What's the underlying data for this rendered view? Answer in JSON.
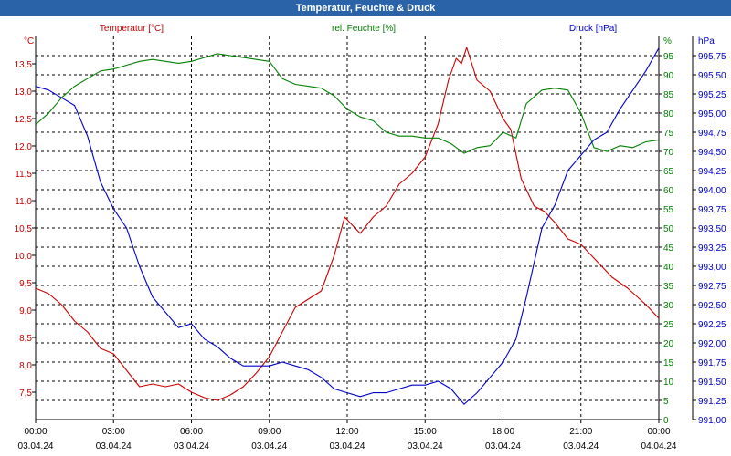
{
  "window": {
    "title": "Temperatur, Feuchte & Druck"
  },
  "colors": {
    "temperature": "#cc0000",
    "humidity": "#008000",
    "pressure": "#0000cc",
    "title_bar": "#2a63a8",
    "grid": "#000000",
    "axis_text": "#000000"
  },
  "chart_data": {
    "type": "line",
    "title": "Temperatur, Feuchte & Druck",
    "x": {
      "unit": "hour",
      "range": [
        0,
        24
      ],
      "ticks": [
        {
          "value": 0,
          "time": "00:00",
          "date": "03.04.24"
        },
        {
          "value": 3,
          "time": "03:00",
          "date": "03.04.24"
        },
        {
          "value": 6,
          "time": "06:00",
          "date": "03.04.24"
        },
        {
          "value": 9,
          "time": "09:00",
          "date": "03.04.24"
        },
        {
          "value": 12,
          "time": "12:00",
          "date": "03.04.24"
        },
        {
          "value": 15,
          "time": "15:00",
          "date": "03.04.24"
        },
        {
          "value": 18,
          "time": "18:00",
          "date": "03.04.24"
        },
        {
          "value": 21,
          "time": "21:00",
          "date": "03.04.24"
        },
        {
          "value": 24,
          "time": "00:00",
          "date": "04.04.24"
        }
      ]
    },
    "axes": {
      "temperature": {
        "label": "Temperatur [°C]",
        "unit": "°C",
        "min": 7.0,
        "max": 14.0,
        "ticks": [
          {
            "v": 7.5,
            "t": "7,5"
          },
          {
            "v": 8.0,
            "t": "8,0"
          },
          {
            "v": 8.5,
            "t": "8,5"
          },
          {
            "v": 9.0,
            "t": "9,0"
          },
          {
            "v": 9.5,
            "t": "9,5"
          },
          {
            "v": 10.0,
            "t": "10,0"
          },
          {
            "v": 10.5,
            "t": "10,5"
          },
          {
            "v": 11.0,
            "t": "11,0"
          },
          {
            "v": 11.5,
            "t": "11,5"
          },
          {
            "v": 12.0,
            "t": "12,0"
          },
          {
            "v": 12.5,
            "t": "12,5"
          },
          {
            "v": 13.0,
            "t": "13,0"
          },
          {
            "v": 13.5,
            "t": "13,5"
          }
        ]
      },
      "humidity": {
        "label": "rel. Feuchte [%]",
        "unit": "%",
        "min": 0,
        "max": 100,
        "ticks": [
          {
            "v": 0,
            "t": "0"
          },
          {
            "v": 5,
            "t": "5"
          },
          {
            "v": 10,
            "t": "10"
          },
          {
            "v": 15,
            "t": "15"
          },
          {
            "v": 20,
            "t": "20"
          },
          {
            "v": 25,
            "t": "25"
          },
          {
            "v": 30,
            "t": "30"
          },
          {
            "v": 35,
            "t": "35"
          },
          {
            "v": 40,
            "t": "40"
          },
          {
            "v": 45,
            "t": "45"
          },
          {
            "v": 50,
            "t": "50"
          },
          {
            "v": 55,
            "t": "55"
          },
          {
            "v": 60,
            "t": "60"
          },
          {
            "v": 65,
            "t": "65"
          },
          {
            "v": 70,
            "t": "70"
          },
          {
            "v": 75,
            "t": "75"
          },
          {
            "v": 80,
            "t": "80"
          },
          {
            "v": 85,
            "t": "85"
          },
          {
            "v": 90,
            "t": "90"
          },
          {
            "v": 95,
            "t": "95"
          }
        ]
      },
      "pressure": {
        "label": "Druck [hPa]",
        "unit": "hPa",
        "min": 991.0,
        "max": 996.0,
        "ticks": [
          {
            "v": 991.0,
            "t": "991,00"
          },
          {
            "v": 991.25,
            "t": "991,25"
          },
          {
            "v": 991.5,
            "t": "991,50"
          },
          {
            "v": 991.75,
            "t": "991,75"
          },
          {
            "v": 992.0,
            "t": "992,00"
          },
          {
            "v": 992.25,
            "t": "992,25"
          },
          {
            "v": 992.5,
            "t": "992,50"
          },
          {
            "v": 992.75,
            "t": "992,75"
          },
          {
            "v": 993.0,
            "t": "993,00"
          },
          {
            "v": 993.25,
            "t": "993,25"
          },
          {
            "v": 993.5,
            "t": "993,50"
          },
          {
            "v": 993.75,
            "t": "993,75"
          },
          {
            "v": 994.0,
            "t": "994,00"
          },
          {
            "v": 994.25,
            "t": "994,25"
          },
          {
            "v": 994.5,
            "t": "994,50"
          },
          {
            "v": 994.75,
            "t": "994,75"
          },
          {
            "v": 995.0,
            "t": "995,00"
          },
          {
            "v": 995.25,
            "t": "995,25"
          },
          {
            "v": 995.5,
            "t": "995,50"
          },
          {
            "v": 995.75,
            "t": "995,75"
          }
        ]
      }
    },
    "grid": true,
    "series": [
      {
        "name": "Temperatur [°C]",
        "axis": "temperature",
        "color": "#cc0000",
        "points": [
          [
            0.0,
            9.4
          ],
          [
            0.5,
            9.3
          ],
          [
            1.0,
            9.1
          ],
          [
            1.5,
            8.8
          ],
          [
            2.0,
            8.6
          ],
          [
            2.5,
            8.3
          ],
          [
            3.0,
            8.2
          ],
          [
            3.5,
            7.9
          ],
          [
            4.0,
            7.6
          ],
          [
            4.5,
            7.65
          ],
          [
            5.0,
            7.6
          ],
          [
            5.5,
            7.65
          ],
          [
            6.0,
            7.5
          ],
          [
            6.5,
            7.4
          ],
          [
            7.0,
            7.35
          ],
          [
            7.5,
            7.45
          ],
          [
            8.0,
            7.6
          ],
          [
            8.5,
            7.85
          ],
          [
            9.0,
            8.15
          ],
          [
            9.5,
            8.6
          ],
          [
            10.0,
            9.05
          ],
          [
            10.5,
            9.2
          ],
          [
            11.0,
            9.35
          ],
          [
            11.5,
            10.0
          ],
          [
            11.9,
            10.7
          ],
          [
            12.5,
            10.4
          ],
          [
            13.0,
            10.7
          ],
          [
            13.5,
            10.9
          ],
          [
            14.0,
            11.3
          ],
          [
            14.5,
            11.5
          ],
          [
            15.0,
            11.8
          ],
          [
            15.5,
            12.4
          ],
          [
            15.9,
            13.2
          ],
          [
            16.2,
            13.6
          ],
          [
            16.4,
            13.5
          ],
          [
            16.6,
            13.8
          ],
          [
            17.0,
            13.2
          ],
          [
            17.5,
            13.0
          ],
          [
            18.0,
            12.5
          ],
          [
            18.3,
            12.3
          ],
          [
            18.7,
            11.4
          ],
          [
            19.2,
            10.9
          ],
          [
            19.6,
            10.8
          ],
          [
            20.0,
            10.6
          ],
          [
            20.5,
            10.3
          ],
          [
            21.0,
            10.2
          ],
          [
            21.6,
            9.9
          ],
          [
            22.2,
            9.6
          ],
          [
            22.8,
            9.4
          ],
          [
            23.5,
            9.1
          ],
          [
            24.0,
            8.85
          ]
        ]
      },
      {
        "name": "rel. Feuchte [%]",
        "axis": "humidity",
        "color": "#008000",
        "points": [
          [
            0.0,
            77
          ],
          [
            0.5,
            80
          ],
          [
            1.0,
            84
          ],
          [
            1.5,
            87
          ],
          [
            2.0,
            89
          ],
          [
            2.5,
            91
          ],
          [
            3.0,
            91.5
          ],
          [
            3.5,
            92.5
          ],
          [
            4.0,
            93.5
          ],
          [
            4.5,
            94
          ],
          [
            5.0,
            93.5
          ],
          [
            5.5,
            93
          ],
          [
            6.0,
            93.5
          ],
          [
            6.5,
            94.5
          ],
          [
            7.0,
            95.5
          ],
          [
            7.5,
            95
          ],
          [
            8.0,
            94.5
          ],
          [
            8.5,
            94
          ],
          [
            9.0,
            93.5
          ],
          [
            9.5,
            89
          ],
          [
            10.0,
            87.5
          ],
          [
            10.5,
            87
          ],
          [
            11.0,
            86.5
          ],
          [
            11.5,
            84.5
          ],
          [
            12.0,
            81
          ],
          [
            12.5,
            79
          ],
          [
            13.0,
            78
          ],
          [
            13.5,
            75
          ],
          [
            14.0,
            74
          ],
          [
            14.5,
            74
          ],
          [
            15.0,
            73.5
          ],
          [
            15.5,
            73.5
          ],
          [
            16.0,
            72
          ],
          [
            16.5,
            69.5
          ],
          [
            17.0,
            71
          ],
          [
            17.5,
            71.5
          ],
          [
            18.0,
            75
          ],
          [
            18.5,
            73.5
          ],
          [
            18.9,
            82.5
          ],
          [
            19.5,
            86
          ],
          [
            20.0,
            86.5
          ],
          [
            20.5,
            86
          ],
          [
            21.0,
            80
          ],
          [
            21.5,
            71
          ],
          [
            22.0,
            70
          ],
          [
            22.5,
            71.5
          ],
          [
            23.0,
            71
          ],
          [
            23.5,
            72.5
          ],
          [
            24.0,
            73
          ]
        ]
      },
      {
        "name": "Druck [hPa]",
        "axis": "pressure",
        "color": "#0000cc",
        "points": [
          [
            0.0,
            995.35
          ],
          [
            0.5,
            995.3
          ],
          [
            1.0,
            995.2
          ],
          [
            1.5,
            995.1
          ],
          [
            2.0,
            994.7
          ],
          [
            2.5,
            994.1
          ],
          [
            3.0,
            993.75
          ],
          [
            3.5,
            993.5
          ],
          [
            4.0,
            993.0
          ],
          [
            4.5,
            992.6
          ],
          [
            5.0,
            992.4
          ],
          [
            5.5,
            992.2
          ],
          [
            6.0,
            992.25
          ],
          [
            6.5,
            992.05
          ],
          [
            7.0,
            991.95
          ],
          [
            7.5,
            991.8
          ],
          [
            8.0,
            991.7
          ],
          [
            8.5,
            991.7
          ],
          [
            9.0,
            991.7
          ],
          [
            9.5,
            991.75
          ],
          [
            10.0,
            991.7
          ],
          [
            10.5,
            991.65
          ],
          [
            11.0,
            991.55
          ],
          [
            11.5,
            991.4
          ],
          [
            12.0,
            991.35
          ],
          [
            12.5,
            991.3
          ],
          [
            13.0,
            991.35
          ],
          [
            13.5,
            991.35
          ],
          [
            14.0,
            991.4
          ],
          [
            14.5,
            991.45
          ],
          [
            15.0,
            991.45
          ],
          [
            15.5,
            991.5
          ],
          [
            16.0,
            991.4
          ],
          [
            16.5,
            991.2
          ],
          [
            17.0,
            991.35
          ],
          [
            17.5,
            991.55
          ],
          [
            18.0,
            991.75
          ],
          [
            18.5,
            992.05
          ],
          [
            18.9,
            992.6
          ],
          [
            19.5,
            993.5
          ],
          [
            20.0,
            993.8
          ],
          [
            20.5,
            994.25
          ],
          [
            21.0,
            994.45
          ],
          [
            21.5,
            994.65
          ],
          [
            22.0,
            994.75
          ],
          [
            22.5,
            995.05
          ],
          [
            23.0,
            995.3
          ],
          [
            23.5,
            995.55
          ],
          [
            24.0,
            995.85
          ]
        ]
      }
    ]
  }
}
